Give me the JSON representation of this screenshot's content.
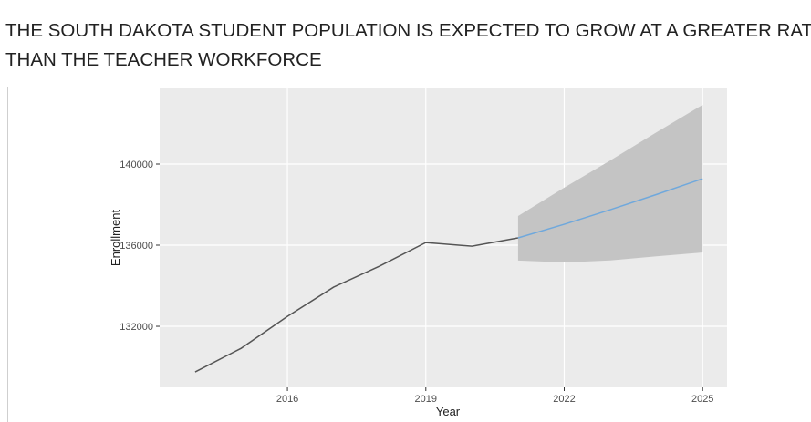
{
  "chart_data": {
    "type": "line",
    "title": [
      "THE SOUTH DAKOTA STUDENT POPULATION IS EXPECTED TO GROW AT A GREATER RATE",
      "THAN THE TEACHER WORKFORCE"
    ],
    "xlabel": "Year",
    "ylabel": "Enrollment",
    "xlim": [
      2013.23,
      2025.53
    ],
    "ylim": [
      128990,
      143730
    ],
    "xticks": [
      2016,
      2019,
      2022,
      2025
    ],
    "yticks": [
      132000,
      136000,
      140000
    ],
    "grid": true,
    "series": [
      {
        "color": "#555555",
        "x": [
          2014,
          2015,
          2016,
          2017,
          2018,
          2019,
          2020,
          2021
        ],
        "values": [
          129750,
          130920,
          132490,
          133930,
          134970,
          136130,
          135950,
          136360
        ]
      },
      {
        "color": "#6fa8dc",
        "band_color": "#c4c4c4",
        "x": [
          2021,
          2022,
          2023,
          2024,
          2025
        ],
        "values": [
          136360,
          137030,
          137750,
          138500,
          139280
        ],
        "lower": [
          135240,
          135150,
          135250,
          135450,
          135640
        ],
        "upper": [
          137440,
          138840,
          140180,
          141570,
          142920
        ]
      }
    ]
  }
}
